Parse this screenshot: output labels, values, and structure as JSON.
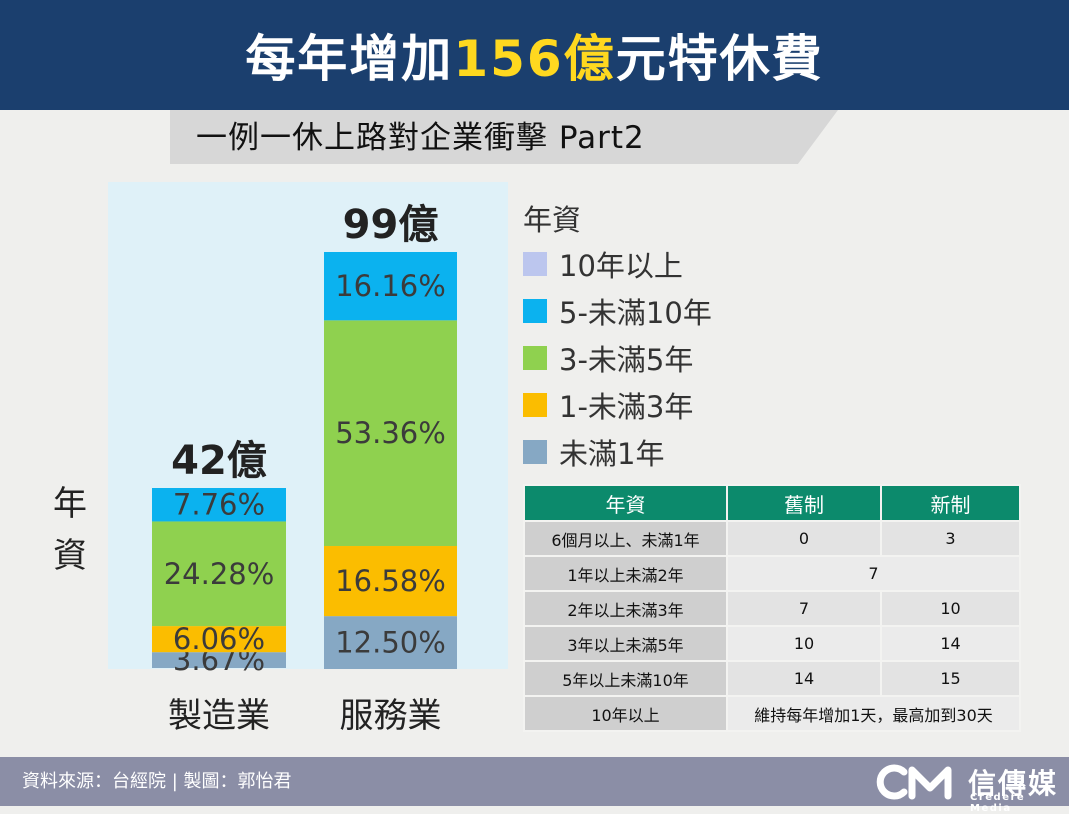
{
  "header": {
    "title_pre": "每年增加",
    "title_highlight": "156億",
    "title_post": "元特休費",
    "subtitle": "一例一休上路對企業衝擊 Part2"
  },
  "chart_data": {
    "type": "bar",
    "stacked": true,
    "normalized": true,
    "categories": [
      "製造業",
      "服務業"
    ],
    "totals": [
      "42億",
      "99億"
    ],
    "ylabel": "年資",
    "series": [
      {
        "name": "未滿1年",
        "color": "#86a8c4",
        "values": [
          3.67,
          12.5
        ]
      },
      {
        "name": "1-未滿3年",
        "color": "#fbbd00",
        "values": [
          6.06,
          16.58
        ]
      },
      {
        "name": "3-未滿5年",
        "color": "#8fd14f",
        "values": [
          24.28,
          53.36
        ]
      },
      {
        "name": "5-未滿10年",
        "color": "#0bb2ef",
        "values": [
          7.76,
          16.16
        ]
      },
      {
        "name": "10年以上",
        "color": "#bcc6ee",
        "values": [
          0,
          0
        ]
      }
    ]
  },
  "legend": {
    "title": "年資",
    "items": [
      {
        "label": "10年以上",
        "color": "#bcc6ee"
      },
      {
        "label": "5-未滿10年",
        "color": "#0bb2ef"
      },
      {
        "label": "3-未滿5年",
        "color": "#8fd14f"
      },
      {
        "label": "1-未滿3年",
        "color": "#fbbd00"
      },
      {
        "label": "未滿1年",
        "color": "#86a8c4"
      }
    ]
  },
  "table": {
    "headers": [
      "年資",
      "舊制",
      "新制"
    ],
    "rows": [
      {
        "label": "6個月以上、未滿1年",
        "old": "0",
        "new": "3"
      },
      {
        "label": "1年以上未滿2年",
        "merged": "7"
      },
      {
        "label": "2年以上未滿3年",
        "old": "7",
        "new": "10"
      },
      {
        "label": "3年以上未滿5年",
        "old": "10",
        "new": "14"
      },
      {
        "label": "5年以上未滿10年",
        "old": "14",
        "new": "15"
      },
      {
        "label": "10年以上",
        "merged": "維持每年增加1天，最高加到30天"
      }
    ]
  },
  "footer": {
    "source": "資料來源：台經院 | 製圖：郭怡君",
    "logo_name": "信傳媒",
    "logo_sub": "Credere Media"
  }
}
